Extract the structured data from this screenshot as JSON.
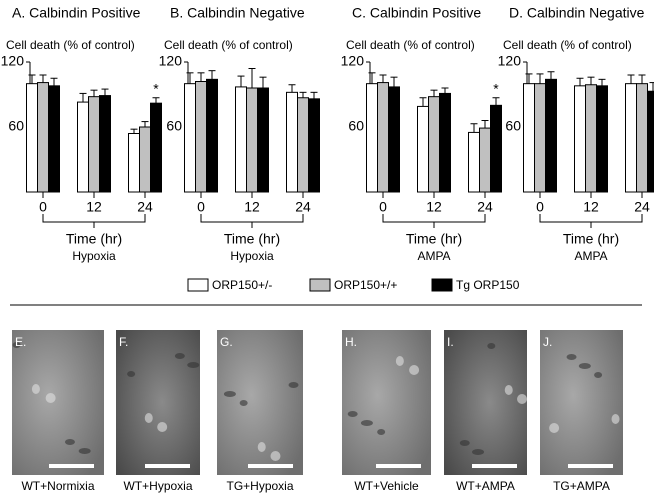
{
  "chart_data": [
    {
      "type": "bar",
      "title": "A. Calbindin Positive",
      "ylabel": "Cell death (% of control)",
      "xlabel": "Time (hr)",
      "condition": "Hypoxia",
      "categories": [
        "0",
        "12",
        "24"
      ],
      "ylim": [
        0,
        120
      ],
      "yticks": [
        60,
        120
      ],
      "series": [
        {
          "name": "ORP150+/-",
          "color": "#ffffff",
          "values": [
            100,
            83,
            54
          ],
          "errors": [
            8,
            8,
            4
          ]
        },
        {
          "name": "ORP150+/+",
          "color": "#c0c0c0",
          "values": [
            101,
            88,
            60
          ],
          "errors": [
            7,
            6,
            5
          ]
        },
        {
          "name": "Tg ORP150",
          "color": "#000000",
          "values": [
            98,
            89,
            82
          ],
          "errors": [
            7,
            6,
            5
          ]
        }
      ],
      "annotation": {
        "text": "*",
        "series": 2,
        "category": 2
      }
    },
    {
      "type": "bar",
      "title": "B. Calbindin Negative",
      "ylabel": "Cell death (% of control)",
      "xlabel": "Time (hr)",
      "condition": "Hypoxia",
      "categories": [
        "0",
        "12",
        "24"
      ],
      "ylim": [
        0,
        120
      ],
      "yticks": [
        60,
        120
      ],
      "series": [
        {
          "name": "ORP150+/-",
          "color": "#ffffff",
          "values": [
            100,
            97,
            92
          ],
          "errors": [
            10,
            10,
            7
          ]
        },
        {
          "name": "ORP150+/+",
          "color": "#c0c0c0",
          "values": [
            102,
            96,
            87
          ],
          "errors": [
            8,
            18,
            5
          ]
        },
        {
          "name": "Tg ORP150",
          "color": "#000000",
          "values": [
            104,
            96,
            86
          ],
          "errors": [
            8,
            10,
            6
          ]
        }
      ]
    },
    {
      "type": "bar",
      "title": "C. Calbindin Positive",
      "ylabel": "Cell death (% of control)",
      "xlabel": "Time (hr)",
      "condition": "AMPA",
      "categories": [
        "0",
        "12",
        "24"
      ],
      "ylim": [
        0,
        120
      ],
      "yticks": [
        60,
        120
      ],
      "series": [
        {
          "name": "ORP150+/-",
          "color": "#ffffff",
          "values": [
            100,
            79,
            55
          ],
          "errors": [
            10,
            8,
            8
          ]
        },
        {
          "name": "ORP150+/+",
          "color": "#c0c0c0",
          "values": [
            101,
            88,
            59
          ],
          "errors": [
            7,
            6,
            7
          ]
        },
        {
          "name": "Tg ORP150",
          "color": "#000000",
          "values": [
            97,
            91,
            80
          ],
          "errors": [
            9,
            5,
            7
          ]
        }
      ],
      "annotation": {
        "text": "*",
        "series": 2,
        "category": 2
      }
    },
    {
      "type": "bar",
      "title": "D. Calbindin Negative",
      "ylabel": "Cell death (% of control)",
      "xlabel": "Time (hr)",
      "condition": "AMPA",
      "categories": [
        "0",
        "12",
        "24"
      ],
      "ylim": [
        0,
        120
      ],
      "yticks": [
        60,
        120
      ],
      "series": [
        {
          "name": "ORP150+/-",
          "color": "#ffffff",
          "values": [
            100,
            98,
            100
          ],
          "errors": [
            9,
            7,
            8
          ]
        },
        {
          "name": "ORP150+/+",
          "color": "#c0c0c0",
          "values": [
            100,
            99,
            100
          ],
          "errors": [
            9,
            7,
            8
          ]
        },
        {
          "name": "Tg ORP150",
          "color": "#000000",
          "values": [
            104,
            98,
            93
          ],
          "errors": [
            7,
            6,
            8
          ]
        }
      ]
    }
  ],
  "images": [
    {
      "label": "E.",
      "caption": "WT+Normixia"
    },
    {
      "label": "F.",
      "caption": "WT+Hypoxia"
    },
    {
      "label": "G.",
      "caption": "TG+Hypoxia"
    },
    {
      "label": "H.",
      "caption": "WT+Vehicle"
    },
    {
      "label": "I.",
      "caption": "WT+AMPA"
    },
    {
      "label": "J.",
      "caption": "TG+AMPA"
    }
  ]
}
